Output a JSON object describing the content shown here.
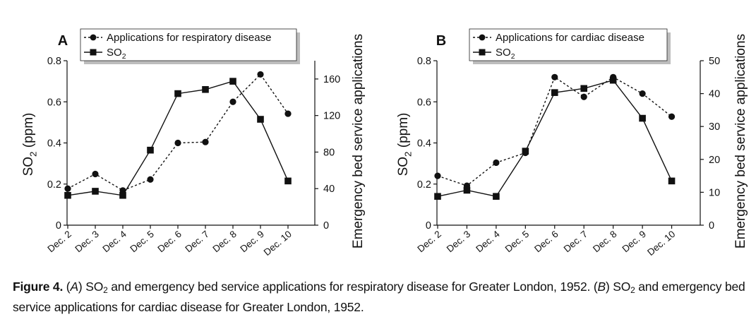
{
  "figure": {
    "caption": {
      "label": "Figure 4.",
      "panel_a_letter": "A",
      "text_a_1": "SO",
      "text_a_sub": "2",
      "text_a_2": " and emergency bed service applications for respiratory disease for Greater London, 1952. (",
      "panel_b_letter": "B",
      "text_b_1": "SO",
      "text_b_sub": "2",
      "text_b_2": " and emergency bed service applications for cardiac disease for Greater London, 1952."
    }
  },
  "chart_data": [
    {
      "panel_label": "A",
      "type": "line",
      "categories": [
        "Dec. 2",
        "Dec. 3",
        "Dec. 4",
        "Dec. 5",
        "Dec. 6",
        "Dec. 7",
        "Dec. 8",
        "Dec. 9",
        "Dec. 10"
      ],
      "ylabel_left": "SO",
      "ylabel_left_sub": "2",
      "ylabel_left_unit": " (ppm)",
      "ylim_left": [
        0,
        0.8
      ],
      "yticks_left": [
        "0",
        "0.2",
        "0.4",
        "0.6",
        "0.8"
      ],
      "ylabel_right": "Emergency bed service applications",
      "ylim_right": [
        0,
        180
      ],
      "yticks_right_values": [
        0,
        40,
        80,
        120,
        160
      ],
      "yticks_right": [
        "0",
        "40",
        "80",
        "120",
        "160"
      ],
      "legend_position": "top",
      "series": [
        {
          "name": "Applications for respiratory disease",
          "name_sub": "",
          "axis": "right",
          "style": "dashed",
          "marker": "circle",
          "values": [
            40,
            56,
            38,
            50,
            90,
            91,
            135,
            165,
            122
          ]
        },
        {
          "name": "SO",
          "name_sub": "2",
          "axis": "left",
          "style": "solid",
          "marker": "square",
          "values": [
            0.145,
            0.165,
            0.145,
            0.365,
            0.64,
            0.66,
            0.7,
            0.515,
            0.215
          ]
        }
      ]
    },
    {
      "panel_label": "B",
      "type": "line",
      "categories": [
        "Dec. 2",
        "Dec. 3",
        "Dec. 4",
        "Dec. 5",
        "Dec. 6",
        "Dec. 7",
        "Dec. 8",
        "Dec. 9",
        "Dec. 10"
      ],
      "ylabel_left": "SO",
      "ylabel_left_sub": "2",
      "ylabel_left_unit": " (ppm)",
      "ylim_left": [
        0,
        0.8
      ],
      "yticks_left": [
        "0",
        "0.2",
        "0.4",
        "0.6",
        "0.8"
      ],
      "ylabel_right": "Emergency bed service applications",
      "ylim_right": [
        0,
        50
      ],
      "yticks_right_values": [
        0,
        10,
        20,
        30,
        40,
        50
      ],
      "yticks_right": [
        "0",
        "10",
        "20",
        "30",
        "40",
        "50"
      ],
      "legend_position": "top",
      "series": [
        {
          "name": "Applications for cardiac disease",
          "name_sub": "",
          "axis": "right",
          "style": "dashed",
          "marker": "circle",
          "values": [
            15,
            12,
            19,
            22,
            45,
            39,
            45,
            40,
            33
          ]
        },
        {
          "name": "SO",
          "name_sub": "2",
          "axis": "left",
          "style": "solid",
          "marker": "square",
          "values": [
            0.14,
            0.17,
            0.14,
            0.36,
            0.645,
            0.665,
            0.705,
            0.52,
            0.215
          ]
        }
      ]
    }
  ]
}
